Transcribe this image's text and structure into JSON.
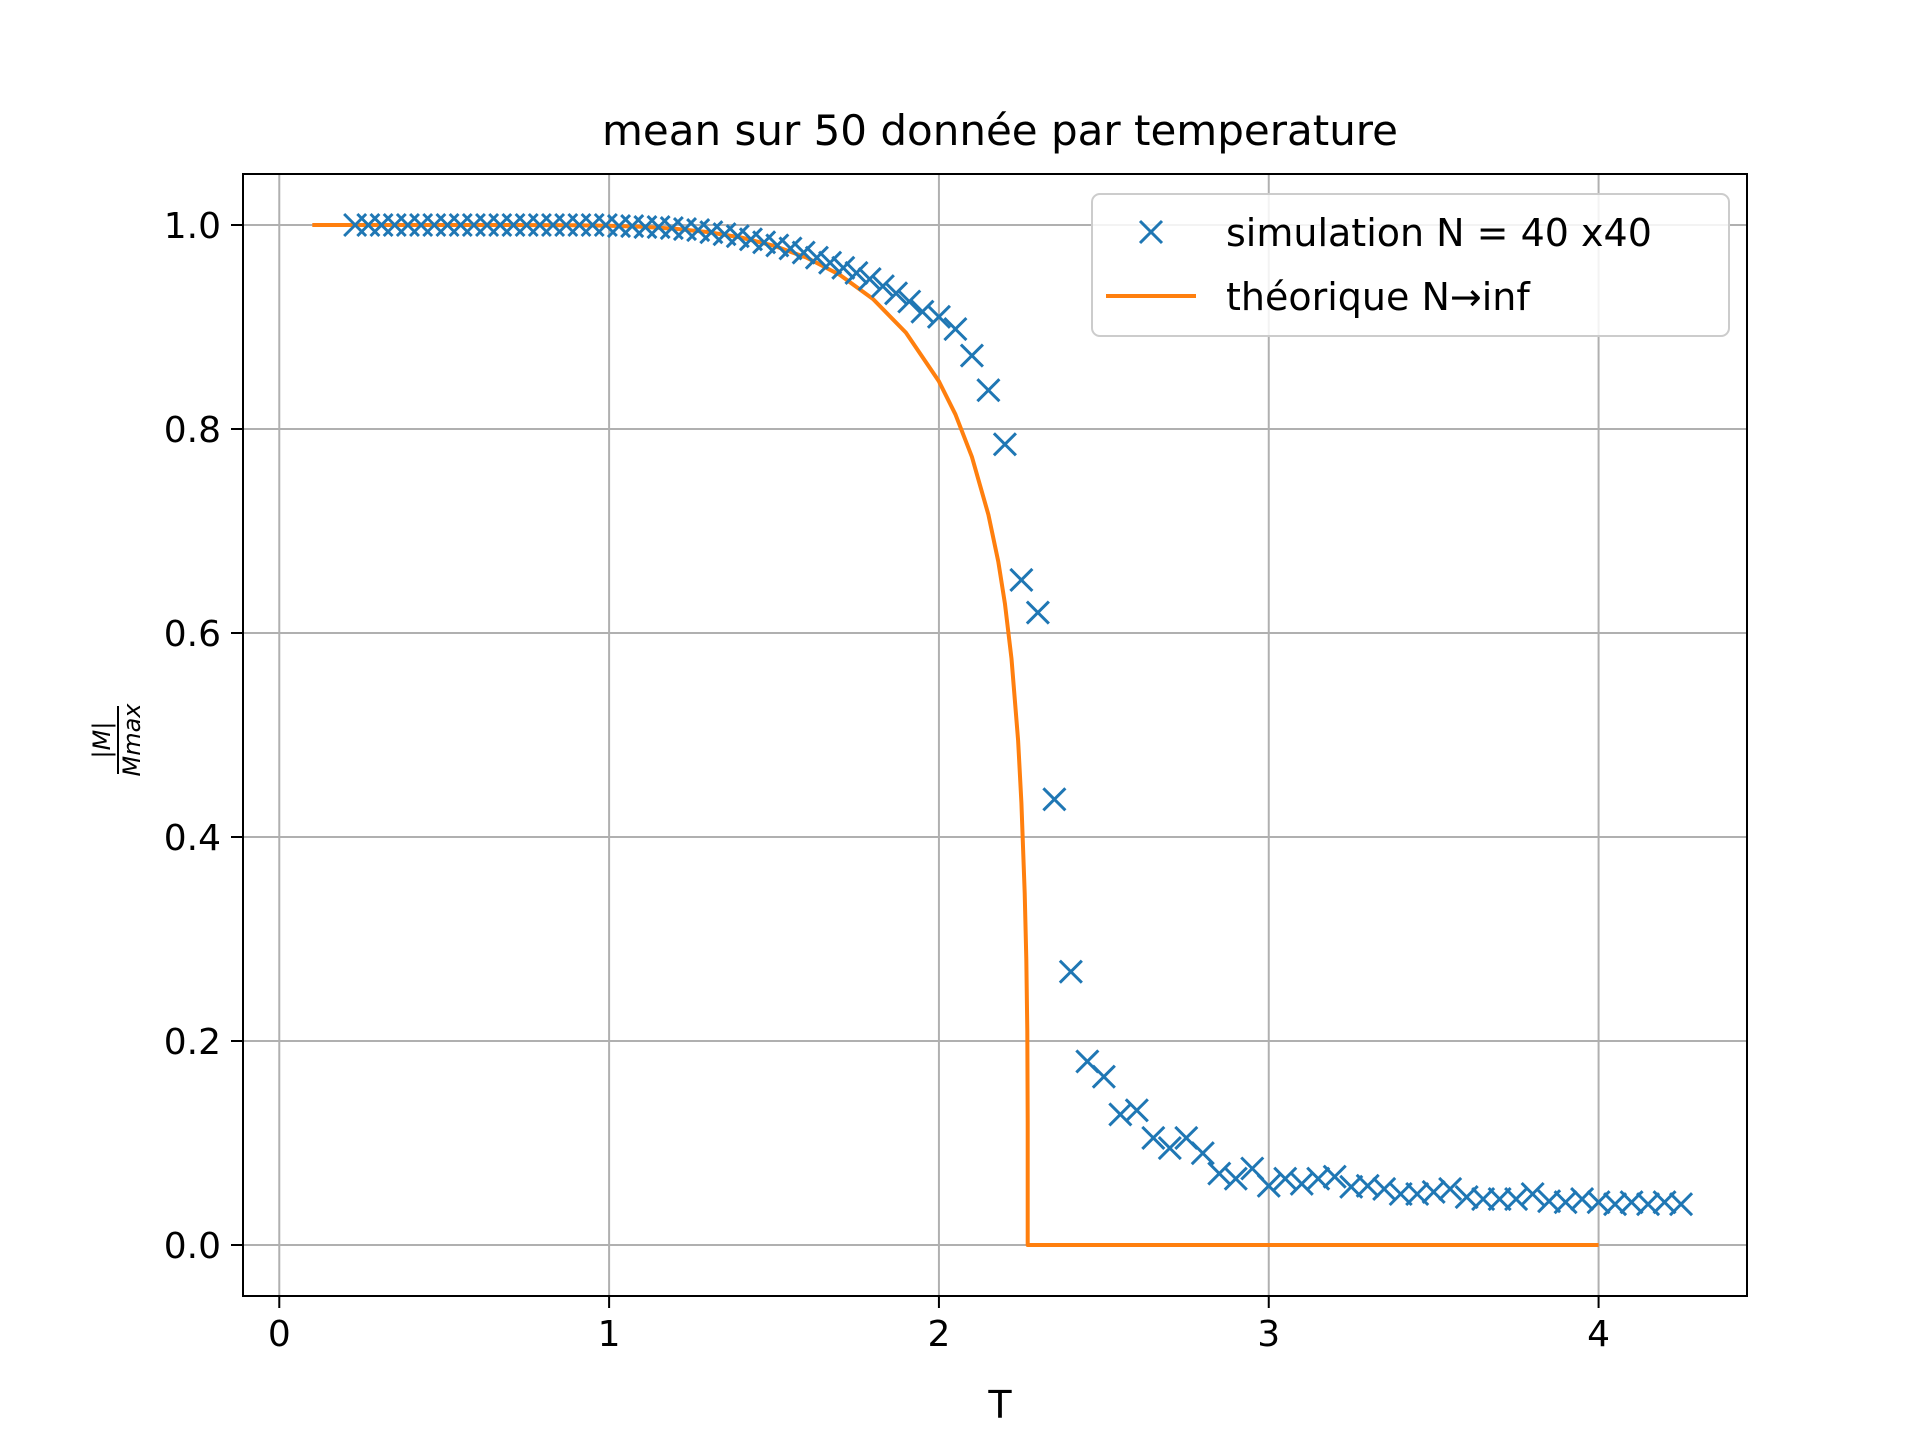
{
  "chart_data": {
    "type": "scatter",
    "title": "mean sur 50 donnée par temperature",
    "xlabel": "T",
    "ylabel_num": "|M|",
    "ylabel_den": "Mmax",
    "xlim": [
      -0.11,
      4.45
    ],
    "ylim": [
      -0.05,
      1.05
    ],
    "xticks": [
      0,
      1,
      2,
      3,
      4
    ],
    "xtick_labels": [
      "0",
      "1",
      "2",
      "3",
      "4"
    ],
    "yticks": [
      0.0,
      0.2,
      0.4,
      0.6,
      0.8,
      1.0
    ],
    "ytick_labels": [
      "0.0",
      "0.2",
      "0.4",
      "0.6",
      "0.8",
      "1.0"
    ],
    "grid": true,
    "legend_position": "upper-right",
    "colors": {
      "simulation": "#1f77b4",
      "theorique": "#ff7f0e",
      "grid": "#b0b0b0"
    },
    "series": [
      {
        "name": "simulation N = 40 x40",
        "kind": "scatter",
        "marker": "x",
        "x": [
          0.23,
          0.27,
          0.31,
          0.35,
          0.39,
          0.43,
          0.47,
          0.51,
          0.55,
          0.59,
          0.63,
          0.67,
          0.71,
          0.75,
          0.79,
          0.83,
          0.87,
          0.91,
          0.95,
          0.99,
          1.03,
          1.07,
          1.11,
          1.15,
          1.19,
          1.23,
          1.27,
          1.31,
          1.35,
          1.39,
          1.43,
          1.47,
          1.51,
          1.55,
          1.59,
          1.63,
          1.67,
          1.71,
          1.75,
          1.79,
          1.83,
          1.87,
          1.91,
          1.95,
          2.0,
          2.05,
          2.1,
          2.15,
          2.2,
          2.25,
          2.3,
          2.35,
          2.4,
          2.45,
          2.5,
          2.55,
          2.6,
          2.65,
          2.7,
          2.75,
          2.8,
          2.85,
          2.9,
          2.95,
          3.0,
          3.05,
          3.1,
          3.15,
          3.2,
          3.25,
          3.3,
          3.35,
          3.4,
          3.45,
          3.5,
          3.55,
          3.6,
          3.65,
          3.7,
          3.75,
          3.8,
          3.85,
          3.9,
          3.95,
          4.0,
          4.05,
          4.1,
          4.15,
          4.2,
          4.25
        ],
        "y": [
          1.0,
          1.0,
          1.0,
          1.0,
          1.0,
          1.0,
          1.0,
          1.0,
          1.0,
          1.0,
          1.0,
          1.0,
          1.0,
          1.0,
          1.0,
          1.0,
          1.0,
          1.0,
          1.0,
          1.0,
          0.999,
          0.999,
          0.998,
          0.998,
          0.997,
          0.996,
          0.995,
          0.993,
          0.991,
          0.989,
          0.986,
          0.983,
          0.98,
          0.977,
          0.973,
          0.968,
          0.963,
          0.958,
          0.953,
          0.947,
          0.94,
          0.933,
          0.925,
          0.915,
          0.91,
          0.898,
          0.872,
          0.838,
          0.785,
          0.652,
          0.62,
          0.437,
          0.268,
          0.18,
          0.165,
          0.128,
          0.132,
          0.105,
          0.095,
          0.105,
          0.09,
          0.07,
          0.065,
          0.075,
          0.058,
          0.065,
          0.06,
          0.065,
          0.067,
          0.057,
          0.058,
          0.055,
          0.05,
          0.05,
          0.052,
          0.055,
          0.047,
          0.045,
          0.045,
          0.045,
          0.05,
          0.043,
          0.042,
          0.045,
          0.042,
          0.04,
          0.042,
          0.04,
          0.042,
          0.04
        ]
      },
      {
        "name": "théorique  N→inf",
        "kind": "line",
        "x": [
          0.1,
          0.2,
          0.3,
          0.4,
          0.5,
          0.6,
          0.7,
          0.8,
          0.9,
          1.0,
          1.1,
          1.2,
          1.3,
          1.4,
          1.5,
          1.6,
          1.7,
          1.8,
          1.9,
          2.0,
          2.05,
          2.1,
          2.15,
          2.18,
          2.2,
          2.22,
          2.24,
          2.25,
          2.26,
          2.265,
          2.268,
          2.269,
          2.269,
          2.4,
          2.6,
          2.8,
          3.0,
          3.2,
          3.4,
          3.6,
          3.8,
          4.0
        ],
        "y": [
          1.0,
          1.0,
          1.0,
          1.0,
          1.0,
          1.0,
          1.0,
          0.9999,
          0.9997,
          0.9992,
          0.9982,
          0.9963,
          0.993,
          0.9877,
          0.9796,
          0.9678,
          0.951,
          0.9275,
          0.8945,
          0.8468,
          0.8144,
          0.7727,
          0.716,
          0.6699,
          0.629,
          0.5748,
          0.4948,
          0.4336,
          0.345,
          0.2806,
          0.2101,
          0.12,
          0.0,
          0.0,
          0.0,
          0.0,
          0.0,
          0.0,
          0.0,
          0.0,
          0.0,
          0.0
        ]
      }
    ]
  }
}
